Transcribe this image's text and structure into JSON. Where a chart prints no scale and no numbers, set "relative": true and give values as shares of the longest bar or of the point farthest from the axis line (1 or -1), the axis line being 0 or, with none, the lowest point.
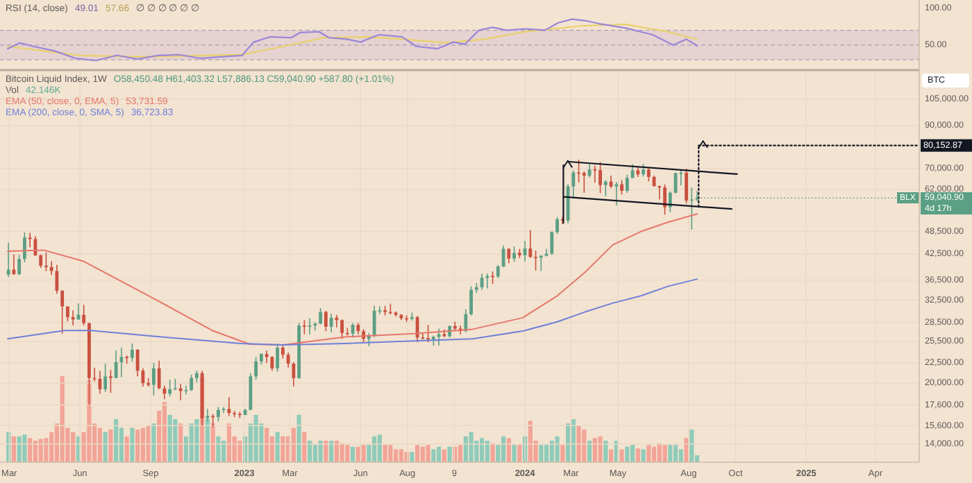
{
  "chart_data": [
    {
      "type": "line",
      "title": "RSI (14, close)",
      "tick_labels": "y",
      "xlim": [
        "2022-02-17",
        "2025-05-28"
      ],
      "ylim": [
        17,
        111
      ],
      "yticks": [
        {
          "value": 50,
          "label": "50.00"
        },
        {
          "value": 100,
          "label": "100.00"
        }
      ],
      "bands": [
        {
          "axis": "y",
          "from": 30,
          "to": 70,
          "color": "#e6d2d0"
        }
      ],
      "ref_lines": [
        {
          "axis": "y",
          "value": 70,
          "color": "#a99fb8",
          "line_style": "dashed"
        },
        {
          "axis": "y",
          "value": 50,
          "color": "#a99fb8",
          "line_style": "dashed"
        },
        {
          "axis": "y",
          "value": 30,
          "color": "#a99fb8",
          "line_style": "dashed"
        }
      ],
      "annotations": [
        "49.01",
        "57.66",
        "∅ ∅ ∅ ∅ ∅ ∅"
      ],
      "series": [
        {
          "type": "line",
          "color": "#e8d06a",
          "x": [
            "2022-02-27",
            "2022-06-01",
            "2022-08-20",
            "2022-11-20",
            "2022-12-29",
            "2023-02-20",
            "2023-04-15",
            "2023-06-10",
            "2023-07-25",
            "2023-09-20",
            "2023-11-10",
            "2024-01-01",
            "2024-03-15",
            "2024-05-11",
            "2024-07-05",
            "2024-08-12"
          ],
          "values": [
            48,
            36,
            34,
            36,
            37,
            48,
            60,
            61,
            58,
            53,
            58,
            68,
            76,
            78,
            68,
            57.66
          ]
        },
        {
          "type": "line",
          "color": "#9a86d8",
          "x": [
            "2022-02-27",
            "2022-03-15",
            "2022-04-02",
            "2022-04-29",
            "2022-05-26",
            "2022-06-22",
            "2022-07-19",
            "2022-08-15",
            "2022-09-11",
            "2022-10-08",
            "2022-11-04",
            "2022-12-02",
            "2022-12-29",
            "2023-01-13",
            "2023-02-03",
            "2023-03-03",
            "2023-03-15",
            "2023-04-08",
            "2023-04-21",
            "2023-05-14",
            "2023-06-01",
            "2023-06-25",
            "2023-07-25",
            "2023-08-13",
            "2023-09-09",
            "2023-09-30",
            "2023-10-15",
            "2023-11-02",
            "2023-11-20",
            "2023-12-08",
            "2024-01-01",
            "2024-01-27",
            "2024-02-13",
            "2024-03-02",
            "2024-03-20",
            "2024-04-06",
            "2024-05-11",
            "2024-06-15",
            "2024-07-12",
            "2024-07-29",
            "2024-08-12"
          ],
          "values": [
            45,
            53,
            48,
            42,
            32,
            29,
            36,
            31,
            36,
            37,
            32,
            34,
            36,
            54,
            61,
            60,
            67,
            68,
            60,
            58,
            54,
            64,
            61,
            48,
            45,
            54,
            51,
            70,
            74,
            70,
            72,
            70,
            80,
            85,
            83,
            79,
            73,
            64,
            50,
            58,
            49.01
          ]
        }
      ]
    },
    {
      "type": "candlestick",
      "title": "Bitcoin Liquid Index, 1W",
      "ylabel": "BTC",
      "log": true,
      "grid": true,
      "legend": "top left",
      "xlim": [
        "2022-02-17",
        "2025-05-28"
      ],
      "ylim": [
        12600,
        123000
      ],
      "xticks": [
        {
          "value": "2022-03-01",
          "label": "Mar"
        },
        {
          "value": "2022-06-01",
          "label": "Jun"
        },
        {
          "value": "2022-09-01",
          "label": "Sep"
        },
        {
          "value": "2023-01-01",
          "label": "2023"
        },
        {
          "value": "2023-03-01",
          "label": "Mar"
        },
        {
          "value": "2023-06-01",
          "label": "Jun"
        },
        {
          "value": "2023-08-01",
          "label": "Aug"
        },
        {
          "value": "2023-10-01",
          "label": "9"
        },
        {
          "value": "2024-01-01",
          "label": "2024"
        },
        {
          "value": "2024-03-01",
          "label": "Mar"
        },
        {
          "value": "2024-05-01",
          "label": "May"
        },
        {
          "value": "2024-08-01",
          "label": "Aug"
        },
        {
          "value": "2024-10-01",
          "label": "Oct"
        },
        {
          "value": "2025-01-01",
          "label": "2025"
        },
        {
          "value": "2025-04-01",
          "label": "Apr"
        }
      ],
      "yticks": [
        {
          "value": 14000,
          "label": "14,000.00"
        },
        {
          "value": 15600,
          "label": "15,600.00"
        },
        {
          "value": 17600,
          "label": "17,600.00"
        },
        {
          "value": 20000,
          "label": "20,000.00"
        },
        {
          "value": 22500,
          "label": "22,500.00"
        },
        {
          "value": 25500,
          "label": "25,500.00"
        },
        {
          "value": 28500,
          "label": "28,500.00"
        },
        {
          "value": 32500,
          "label": "32,500.00"
        },
        {
          "value": 36500,
          "label": "36,500.00"
        },
        {
          "value": 42500,
          "label": "42,500.00"
        },
        {
          "value": 48500,
          "label": "48,500.00"
        },
        {
          "value": 62000,
          "label": "62,000.00"
        },
        {
          "value": 70000,
          "label": "70,000.00"
        },
        {
          "value": 90000,
          "label": "90,000.00"
        },
        {
          "value": 105000,
          "label": "105,000.00"
        }
      ],
      "annotations": [
        "O58,450.48 H61,403.32 L57,886.13 C59,040.90 +587.80 (+1.01%)",
        "BLX",
        "4d 17h",
        "53,731.59",
        "36,723.83",
        {
          "text": "80,152.87",
          "x": "2025-05-28",
          "y": 80152.87
        },
        {
          "text": "59,040.90",
          "x": "2024-08-12",
          "y": 59040.9
        }
      ],
      "x": [
        "2022-02-28",
        "2022-03-07",
        "2022-03-14",
        "2022-03-21",
        "2022-03-28",
        "2022-04-04",
        "2022-04-11",
        "2022-04-18",
        "2022-04-25",
        "2022-05-02",
        "2022-05-09",
        "2022-05-16",
        "2022-05-23",
        "2022-05-30",
        "2022-06-06",
        "2022-06-13",
        "2022-06-20",
        "2022-06-27",
        "2022-07-04",
        "2022-07-11",
        "2022-07-18",
        "2022-07-25",
        "2022-08-01",
        "2022-08-08",
        "2022-08-15",
        "2022-08-22",
        "2022-08-29",
        "2022-09-05",
        "2022-09-12",
        "2022-09-19",
        "2022-09-26",
        "2022-10-03",
        "2022-10-10",
        "2022-10-17",
        "2022-10-24",
        "2022-10-31",
        "2022-11-07",
        "2022-11-14",
        "2022-11-21",
        "2022-11-28",
        "2022-12-05",
        "2022-12-12",
        "2022-12-19",
        "2022-12-26",
        "2023-01-02",
        "2023-01-09",
        "2023-01-16",
        "2023-01-23",
        "2023-01-30",
        "2023-02-06",
        "2023-02-13",
        "2023-02-20",
        "2023-02-27",
        "2023-03-06",
        "2023-03-13",
        "2023-03-20",
        "2023-03-27",
        "2023-04-03",
        "2023-04-10",
        "2023-04-17",
        "2023-04-24",
        "2023-05-01",
        "2023-05-08",
        "2023-05-15",
        "2023-05-22",
        "2023-05-29",
        "2023-06-05",
        "2023-06-12",
        "2023-06-19",
        "2023-06-26",
        "2023-07-03",
        "2023-07-10",
        "2023-07-17",
        "2023-07-24",
        "2023-07-31",
        "2023-08-07",
        "2023-08-14",
        "2023-08-21",
        "2023-08-28",
        "2023-09-04",
        "2023-09-11",
        "2023-09-18",
        "2023-09-25",
        "2023-10-02",
        "2023-10-09",
        "2023-10-16",
        "2023-10-23",
        "2023-10-30",
        "2023-11-06",
        "2023-11-13",
        "2023-11-20",
        "2023-11-27",
        "2023-12-04",
        "2023-12-11",
        "2023-12-18",
        "2023-12-25",
        "2024-01-01",
        "2024-01-08",
        "2024-01-15",
        "2024-01-22",
        "2024-01-29",
        "2024-02-05",
        "2024-02-12",
        "2024-02-19",
        "2024-02-26",
        "2024-03-04",
        "2024-03-11",
        "2024-03-18",
        "2024-03-25",
        "2024-04-01",
        "2024-04-08",
        "2024-04-15",
        "2024-04-22",
        "2024-04-29",
        "2024-05-06",
        "2024-05-13",
        "2024-05-20",
        "2024-05-27",
        "2024-06-03",
        "2024-06-10",
        "2024-06-17",
        "2024-06-24",
        "2024-07-01",
        "2024-07-08",
        "2024-07-15",
        "2024-07-22",
        "2024-07-29",
        "2024-08-05",
        "2024-08-12"
      ],
      "ohlc": [
        [
          37700,
          45400,
          37200,
          38800
        ],
        [
          38800,
          42400,
          37600,
          37800
        ],
        [
          37800,
          42300,
          37600,
          41300
        ],
        [
          41300,
          48200,
          40500,
          46800
        ],
        [
          46800,
          48100,
          44200,
          46400
        ],
        [
          46400,
          47200,
          42000,
          42200
        ],
        [
          42200,
          42400,
          39200,
          39700
        ],
        [
          39700,
          42900,
          38500,
          39400
        ],
        [
          39400,
          40800,
          37600,
          38500
        ],
        [
          38500,
          39900,
          33700,
          34300
        ],
        [
          34300,
          34400,
          26700,
          31300
        ],
        [
          31300,
          31300,
          28700,
          29400
        ],
        [
          29400,
          30600,
          28000,
          29000
        ],
        [
          29000,
          31900,
          29000,
          29800
        ],
        [
          29800,
          31600,
          28000,
          28400
        ],
        [
          28400,
          28400,
          17600,
          20600
        ],
        [
          20600,
          21900,
          20200,
          20500
        ],
        [
          20500,
          21500,
          18800,
          19300
        ],
        [
          19300,
          22400,
          19000,
          20800
        ],
        [
          20800,
          21600,
          18900,
          20600
        ],
        [
          20600,
          24200,
          20600,
          22600
        ],
        [
          22600,
          24600,
          20700,
          23300
        ],
        [
          23300,
          23500,
          22400,
          23200
        ],
        [
          23200,
          25200,
          22700,
          24300
        ],
        [
          24300,
          24400,
          20800,
          21500
        ],
        [
          21500,
          21800,
          19600,
          20000
        ],
        [
          20000,
          20600,
          19600,
          19800
        ],
        [
          19800,
          22500,
          18600,
          21800
        ],
        [
          21800,
          22800,
          19300,
          19400
        ],
        [
          19400,
          19700,
          18200,
          18800
        ],
        [
          18800,
          20400,
          18500,
          19300
        ],
        [
          19300,
          20500,
          19200,
          19400
        ],
        [
          19400,
          19900,
          18100,
          19100
        ],
        [
          19100,
          19700,
          18700,
          19200
        ],
        [
          19200,
          21000,
          19100,
          20600
        ],
        [
          20600,
          21500,
          20100,
          21200
        ],
        [
          21200,
          21500,
          15600,
          16300
        ],
        [
          16300,
          17200,
          16000,
          16500
        ],
        [
          16500,
          16700,
          15500,
          16400
        ],
        [
          16400,
          17400,
          16000,
          17100
        ],
        [
          17100,
          17400,
          16800,
          17200
        ],
        [
          17200,
          18400,
          16500,
          16800
        ],
        [
          16800,
          17000,
          16400,
          16700
        ],
        [
          16700,
          16900,
          16300,
          16600
        ],
        [
          16600,
          17200,
          16600,
          17100
        ],
        [
          17100,
          21200,
          17100,
          20800
        ],
        [
          20800,
          23300,
          20400,
          22700
        ],
        [
          22700,
          23800,
          22300,
          23700
        ],
        [
          23700,
          24200,
          22500,
          23300
        ],
        [
          23300,
          23400,
          21500,
          21800
        ],
        [
          21800,
          25200,
          21400,
          24600
        ],
        [
          24600,
          25100,
          23100,
          23600
        ],
        [
          23600,
          23900,
          21900,
          22400
        ],
        [
          22400,
          22600,
          19600,
          20600
        ],
        [
          20600,
          28400,
          20500,
          28000
        ],
        [
          28000,
          28900,
          26600,
          27800
        ],
        [
          27800,
          29200,
          26600,
          28000
        ],
        [
          28000,
          28500,
          27200,
          28300
        ],
        [
          28300,
          31000,
          28200,
          30300
        ],
        [
          30300,
          30500,
          27100,
          27800
        ],
        [
          27800,
          30000,
          26900,
          29300
        ],
        [
          29300,
          29800,
          27700,
          28900
        ],
        [
          28900,
          29000,
          25900,
          26800
        ],
        [
          26800,
          27600,
          26400,
          26700
        ],
        [
          26700,
          28400,
          26100,
          28100
        ],
        [
          28100,
          28400,
          26600,
          27100
        ],
        [
          27100,
          27400,
          25400,
          25900
        ],
        [
          25900,
          26800,
          24800,
          26300
        ],
        [
          26300,
          31400,
          26200,
          30500
        ],
        [
          30500,
          31300,
          29900,
          30600
        ],
        [
          30600,
          31400,
          29700,
          30300
        ],
        [
          30300,
          31800,
          29900,
          30200
        ],
        [
          30200,
          30400,
          29500,
          29800
        ],
        [
          29800,
          29900,
          28900,
          29200
        ],
        [
          29200,
          29700,
          28600,
          29100
        ],
        [
          29100,
          30200,
          28800,
          29400
        ],
        [
          29400,
          29600,
          25400,
          26100
        ],
        [
          26100,
          26800,
          25800,
          26000
        ],
        [
          26000,
          28100,
          25400,
          25800
        ],
        [
          25800,
          26400,
          24900,
          26200
        ],
        [
          26200,
          27500,
          24900,
          26600
        ],
        [
          26600,
          27400,
          26200,
          26300
        ],
        [
          26300,
          28000,
          26100,
          27900
        ],
        [
          27900,
          28600,
          27200,
          27500
        ],
        [
          27500,
          28000,
          26600,
          27100
        ],
        [
          27100,
          30800,
          26900,
          29900
        ],
        [
          29900,
          35200,
          29700,
          34500
        ],
        [
          34500,
          35900,
          33900,
          35000
        ],
        [
          35000,
          37900,
          34500,
          37000
        ],
        [
          37000,
          37900,
          34800,
          37400
        ],
        [
          37400,
          38400,
          35700,
          37300
        ],
        [
          37300,
          39900,
          36900,
          39500
        ],
        [
          39500,
          44700,
          39400,
          43800
        ],
        [
          43800,
          44000,
          40300,
          41400
        ],
        [
          41400,
          44400,
          40600,
          42800
        ],
        [
          42800,
          43800,
          41500,
          42200
        ],
        [
          42200,
          45900,
          40700,
          43900
        ],
        [
          43900,
          48900,
          41600,
          41800
        ],
        [
          41800,
          43400,
          38600,
          41600
        ],
        [
          41600,
          42200,
          38500,
          42100
        ],
        [
          42100,
          43800,
          41900,
          42600
        ],
        [
          42600,
          48500,
          42300,
          48300
        ],
        [
          48300,
          52800,
          47800,
          52100
        ],
        [
          52100,
          52900,
          50600,
          51700
        ],
        [
          51700,
          64000,
          50900,
          63100
        ],
        [
          63100,
          69200,
          59000,
          68400
        ],
        [
          68400,
          73800,
          64600,
          68300
        ],
        [
          68300,
          68900,
          60800,
          67200
        ],
        [
          67200,
          71800,
          66500,
          69700
        ],
        [
          69700,
          71300,
          64500,
          69400
        ],
        [
          69400,
          72700,
          60700,
          63600
        ],
        [
          63600,
          65500,
          59600,
          64900
        ],
        [
          64900,
          67200,
          62500,
          63100
        ],
        [
          63100,
          64700,
          56500,
          63900
        ],
        [
          63900,
          65500,
          60200,
          61500
        ],
        [
          61500,
          67600,
          60800,
          66300
        ],
        [
          66300,
          71900,
          66300,
          69300
        ],
        [
          69300,
          70600,
          66700,
          67700
        ],
        [
          67700,
          71900,
          66900,
          69600
        ],
        [
          69600,
          70200,
          65000,
          66700
        ],
        [
          66700,
          67200,
          63100,
          63200
        ],
        [
          63200,
          63400,
          58500,
          62700
        ],
        [
          62700,
          63800,
          53500,
          55900
        ],
        [
          55900,
          61300,
          54300,
          60800
        ],
        [
          60800,
          68400,
          60600,
          68200
        ],
        [
          68200,
          69400,
          63500,
          68300
        ],
        [
          68300,
          70000,
          57100,
          58100
        ],
        [
          58100,
          62700,
          49000,
          58450.48
        ],
        [
          58450.48,
          61403.32,
          57886.13,
          59040.9
        ]
      ],
      "series": [
        {
          "type": "line",
          "name": "EMA (50, close, 0, EMA, 5)",
          "color": "#e5776c",
          "x": [
            "2022-02-27",
            "2022-04-15",
            "2022-06-05",
            "2022-09-05",
            "2022-11-20",
            "2023-01-08",
            "2023-02-20",
            "2023-05-12",
            "2023-08-10",
            "2023-10-25",
            "2023-12-29",
            "2024-02-12",
            "2024-03-19",
            "2024-04-24",
            "2024-05-31",
            "2024-07-05",
            "2024-08-12"
          ],
          "values": [
            43200,
            43500,
            40800,
            32800,
            27200,
            25100,
            25000,
            26200,
            26700,
            27400,
            29300,
            33300,
            38200,
            44800,
            48500,
            51200,
            53731.59
          ]
        },
        {
          "type": "line",
          "name": "EMA (200, close, 0, SMA, 5)",
          "color": "#6f80d8",
          "x": [
            "2022-02-27",
            "2022-05-12",
            "2022-06-15",
            "2022-09-05",
            "2022-12-27",
            "2023-02-20",
            "2023-05-12",
            "2023-08-10",
            "2023-10-25",
            "2023-12-29",
            "2024-02-12",
            "2024-03-19",
            "2024-04-24",
            "2024-05-31",
            "2024-07-05",
            "2024-08-12"
          ],
          "values": [
            25900,
            27200,
            27200,
            26300,
            25200,
            25000,
            25200,
            25600,
            25900,
            27100,
            28600,
            30300,
            31900,
            33300,
            35200,
            36723.83
          ]
        },
        {
          "type": "line",
          "color": "#131722",
          "x": [
            "2024-02-27",
            "2024-10-03"
          ],
          "values": [
            72900,
            67800
          ]
        },
        {
          "type": "line",
          "color": "#131722",
          "x": [
            "2024-02-20",
            "2024-09-26"
          ],
          "values": [
            59400,
            55300
          ]
        },
        {
          "type": "line",
          "color": "#131722",
          "x": [
            "2024-02-20",
            "2024-02-20"
          ],
          "values": [
            51000,
            71400
          ]
        },
        {
          "type": "line",
          "color": "#131722",
          "line_style": "dotted",
          "x": [
            "2024-08-14",
            "2024-08-14"
          ],
          "values": [
            56000,
            80152.87
          ]
        },
        {
          "type": "line",
          "color": "#131722",
          "line_style": "dotted",
          "x": [
            "2024-08-14",
            "2025-05-28"
          ],
          "values": [
            80152.87,
            80152.87
          ]
        }
      ]
    },
    {
      "type": "bar",
      "title": "Vol",
      "annotations": [
        "42.146K"
      ],
      "relative": true,
      "tick_labels": false,
      "xlim": [
        "2022-02-17",
        "2025-05-28"
      ],
      "x": [
        "2022-02-28",
        "2022-03-07",
        "2022-03-14",
        "2022-03-21",
        "2022-03-28",
        "2022-04-04",
        "2022-04-11",
        "2022-04-18",
        "2022-04-25",
        "2022-05-02",
        "2022-05-09",
        "2022-05-16",
        "2022-05-23",
        "2022-05-30",
        "2022-06-06",
        "2022-06-13",
        "2022-06-20",
        "2022-06-27",
        "2022-07-04",
        "2022-07-11",
        "2022-07-18",
        "2022-07-25",
        "2022-08-01",
        "2022-08-08",
        "2022-08-15",
        "2022-08-22",
        "2022-08-29",
        "2022-09-05",
        "2022-09-12",
        "2022-09-19",
        "2022-09-26",
        "2022-10-03",
        "2022-10-10",
        "2022-10-17",
        "2022-10-24",
        "2022-10-31",
        "2022-11-07",
        "2022-11-14",
        "2022-11-21",
        "2022-11-28",
        "2022-12-05",
        "2022-12-12",
        "2022-12-19",
        "2022-12-26",
        "2023-01-02",
        "2023-01-09",
        "2023-01-16",
        "2023-01-23",
        "2023-01-30",
        "2023-02-06",
        "2023-02-13",
        "2023-02-20",
        "2023-02-27",
        "2023-03-06",
        "2023-03-13",
        "2023-03-20",
        "2023-03-27",
        "2023-04-03",
        "2023-04-10",
        "2023-04-17",
        "2023-04-24",
        "2023-05-01",
        "2023-05-08",
        "2023-05-15",
        "2023-05-22",
        "2023-05-29",
        "2023-06-05",
        "2023-06-12",
        "2023-06-19",
        "2023-06-26",
        "2023-07-03",
        "2023-07-10",
        "2023-07-17",
        "2023-07-24",
        "2023-07-31",
        "2023-08-07",
        "2023-08-14",
        "2023-08-21",
        "2023-08-28",
        "2023-09-04",
        "2023-09-11",
        "2023-09-18",
        "2023-09-25",
        "2023-10-02",
        "2023-10-09",
        "2023-10-16",
        "2023-10-23",
        "2023-10-30",
        "2023-11-06",
        "2023-11-13",
        "2023-11-20",
        "2023-11-27",
        "2023-12-04",
        "2023-12-11",
        "2023-12-18",
        "2023-12-25",
        "2024-01-01",
        "2024-01-08",
        "2024-01-15",
        "2024-01-22",
        "2024-01-29",
        "2024-02-05",
        "2024-02-12",
        "2024-02-19",
        "2024-02-26",
        "2024-03-04",
        "2024-03-11",
        "2024-03-18",
        "2024-03-25",
        "2024-04-01",
        "2024-04-08",
        "2024-04-15",
        "2024-04-22",
        "2024-04-29",
        "2024-05-06",
        "2024-05-13",
        "2024-05-20",
        "2024-05-27",
        "2024-06-03",
        "2024-06-10",
        "2024-06-17",
        "2024-06-24",
        "2024-07-01",
        "2024-07-08",
        "2024-07-15",
        "2024-07-22",
        "2024-07-29",
        "2024-08-05",
        "2024-08-12"
      ],
      "values": [
        0.35,
        0.3,
        0.3,
        0.32,
        0.28,
        0.25,
        0.27,
        0.28,
        0.35,
        0.45,
        1,
        0.4,
        0.35,
        0.3,
        0.35,
        0.95,
        0.45,
        0.4,
        0.35,
        0.38,
        0.5,
        0.4,
        0.3,
        0.4,
        0.38,
        0.4,
        0.42,
        0.45,
        0.6,
        0.7,
        0.55,
        0.5,
        0.45,
        0.3,
        0.45,
        0.5,
        0.98,
        0.5,
        0.45,
        0.3,
        0.25,
        0.45,
        0.3,
        0.25,
        0.3,
        0.45,
        0.55,
        0.45,
        0.4,
        0.3,
        0.35,
        0.3,
        0.3,
        0.4,
        0.55,
        0.35,
        0.25,
        0.2,
        0.25,
        0.25,
        0.25,
        0.25,
        0.22,
        0.2,
        0.18,
        0.18,
        0.2,
        0.2,
        0.3,
        0.32,
        0.2,
        0.2,
        0.15,
        0.15,
        0.12,
        0.12,
        0.2,
        0.18,
        0.2,
        0.15,
        0.18,
        0.15,
        0.18,
        0.18,
        0.2,
        0.3,
        0.35,
        0.25,
        0.28,
        0.25,
        0.22,
        0.2,
        0.3,
        0.28,
        0.2,
        0.2,
        0.3,
        0.48,
        0.25,
        0.2,
        0.2,
        0.25,
        0.3,
        0.2,
        0.45,
        0.5,
        0.42,
        0.38,
        0.25,
        0.28,
        0.3,
        0.25,
        0.15,
        0.25,
        0.15,
        0.18,
        0.2,
        0.16,
        0.15,
        0.2,
        0.18,
        0.22,
        0.2,
        0.2,
        0.2,
        0.15,
        0.28,
        0.38,
        0.08
      ],
      "colors": [
        "#8fcbb8",
        "#f2a497",
        "#8fcbb8",
        "#8fcbb8",
        "#f2a497",
        "#f2a497",
        "#f2a497",
        "#f2a497",
        "#f2a497",
        "#f2a497",
        "#f2a497",
        "#f2a497",
        "#f2a497",
        "#8fcbb8",
        "#f2a497",
        "#f2a497",
        "#f2a497",
        "#f2a497",
        "#8fcbb8",
        "#f2a497",
        "#8fcbb8",
        "#8fcbb8",
        "#f2a497",
        "#8fcbb8",
        "#f2a497",
        "#f2a497",
        "#f2a497",
        "#8fcbb8",
        "#f2a497",
        "#f2a497",
        "#8fcbb8",
        "#8fcbb8",
        "#f2a497",
        "#8fcbb8",
        "#8fcbb8",
        "#8fcbb8",
        "#f2a497",
        "#8fcbb8",
        "#f2a497",
        "#8fcbb8",
        "#8fcbb8",
        "#f2a497",
        "#f2a497",
        "#f2a497",
        "#8fcbb8",
        "#8fcbb8",
        "#8fcbb8",
        "#8fcbb8",
        "#f2a497",
        "#f2a497",
        "#8fcbb8",
        "#f2a497",
        "#f2a497",
        "#f2a497",
        "#8fcbb8",
        "#f2a497",
        "#8fcbb8",
        "#8fcbb8",
        "#8fcbb8",
        "#f2a497",
        "#8fcbb8",
        "#f2a497",
        "#f2a497",
        "#f2a497",
        "#8fcbb8",
        "#f2a497",
        "#f2a497",
        "#8fcbb8",
        "#8fcbb8",
        "#8fcbb8",
        "#f2a497",
        "#f2a497",
        "#f2a497",
        "#f2a497",
        "#f2a497",
        "#8fcbb8",
        "#f2a497",
        "#f2a497",
        "#f2a497",
        "#8fcbb8",
        "#8fcbb8",
        "#f2a497",
        "#8fcbb8",
        "#f2a497",
        "#f2a497",
        "#8fcbb8",
        "#8fcbb8",
        "#8fcbb8",
        "#8fcbb8",
        "#8fcbb8",
        "#f2a497",
        "#8fcbb8",
        "#8fcbb8",
        "#f2a497",
        "#8fcbb8",
        "#f2a497",
        "#8fcbb8",
        "#f2a497",
        "#f2a497",
        "#8fcbb8",
        "#8fcbb8",
        "#8fcbb8",
        "#8fcbb8",
        "#f2a497",
        "#8fcbb8",
        "#8fcbb8",
        "#f2a497",
        "#f2a497",
        "#8fcbb8",
        "#f2a497",
        "#f2a497",
        "#8fcbb8",
        "#f2a497",
        "#8fcbb8",
        "#f2a497",
        "#8fcbb8",
        "#8fcbb8",
        "#f2a497",
        "#8fcbb8",
        "#f2a497",
        "#f2a497",
        "#f2a497",
        "#f2a497",
        "#8fcbb8",
        "#8fcbb8",
        "#8fcbb8",
        "#f2a497",
        "#8fcbb8",
        "#8fcbb8"
      ]
    }
  ]
}
